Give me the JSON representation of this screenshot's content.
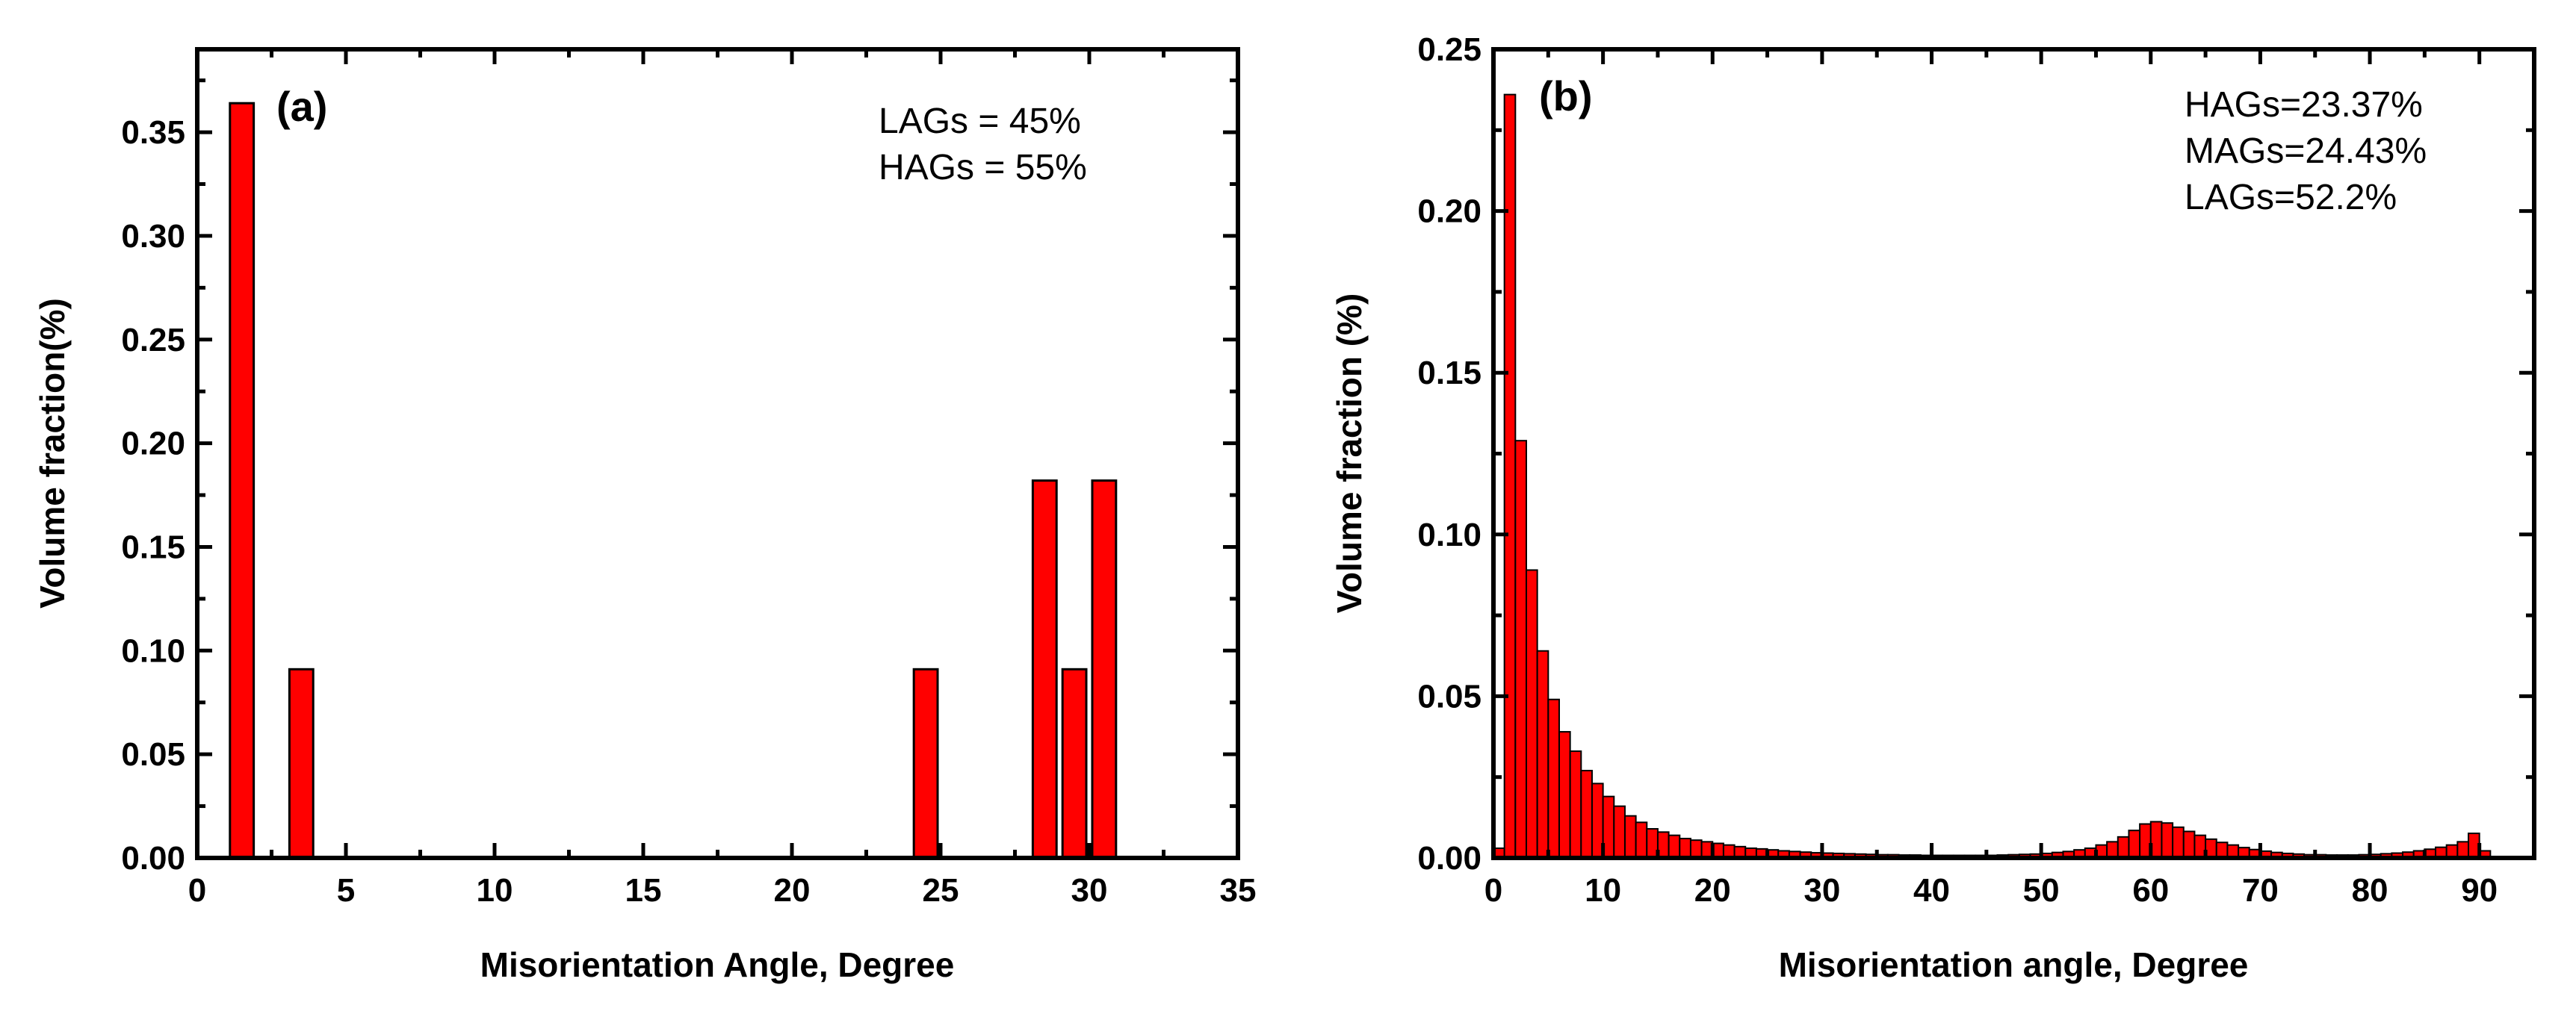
{
  "colors": {
    "bar_fill": "#ff0000",
    "bar_stroke": "#000000",
    "axis": "#000000",
    "background": "#ffffff"
  },
  "chart_data": [
    {
      "type": "bar",
      "panel_label": "(a)",
      "xlabel": "Misorientation Angle, Degree",
      "ylabel": "Volume fraction(%)",
      "xlim": [
        0,
        35
      ],
      "ylim": [
        0,
        0.39
      ],
      "x_ticks": [
        0,
        5,
        10,
        15,
        20,
        25,
        30,
        35
      ],
      "x_tick_labels": [
        "0",
        "5",
        "10",
        "15",
        "20",
        "25",
        "30",
        "35"
      ],
      "y_ticks": [
        0,
        0.05,
        0.1,
        0.15,
        0.2,
        0.25,
        0.3,
        0.35
      ],
      "y_tick_labels": [
        "0.00",
        "0.05",
        "0.10",
        "0.15",
        "0.20",
        "0.25",
        "0.30",
        "0.35"
      ],
      "bar_width": 0.8,
      "x": [
        1.5,
        3.5,
        24.5,
        28.5,
        29.5,
        30.5
      ],
      "values": [
        0.364,
        0.091,
        0.091,
        0.182,
        0.091,
        0.182
      ],
      "annotations": [
        "LAGs = 45%",
        "HAGs = 55%"
      ]
    },
    {
      "type": "bar",
      "panel_label": "(b)",
      "xlabel": "Misorientation angle, Degree",
      "ylabel": "Volume fraction (%)",
      "xlim": [
        0,
        95
      ],
      "ylim": [
        0,
        0.25
      ],
      "x_ticks": [
        0,
        10,
        20,
        30,
        40,
        50,
        60,
        70,
        80,
        90
      ],
      "x_tick_labels": [
        "0",
        "10",
        "20",
        "30",
        "40",
        "50",
        "60",
        "70",
        "80",
        "90"
      ],
      "y_ticks": [
        0,
        0.05,
        0.1,
        0.15,
        0.2,
        0.25
      ],
      "y_tick_labels": [
        "0.00",
        "0.05",
        "0.10",
        "0.15",
        "0.20",
        "0.25"
      ],
      "bar_width": 1,
      "x": [
        0.5,
        1.5,
        2.5,
        3.5,
        4.5,
        5.5,
        6.5,
        7.5,
        8.5,
        9.5,
        10.5,
        11.5,
        12.5,
        13.5,
        14.5,
        15.5,
        16.5,
        17.5,
        18.5,
        19.5,
        20.5,
        21.5,
        22.5,
        23.5,
        24.5,
        25.5,
        26.5,
        27.5,
        28.5,
        29.5,
        30.5,
        31.5,
        32.5,
        33.5,
        34.5,
        35.5,
        36.5,
        37.5,
        38.5,
        39.5,
        40.5,
        41.5,
        42.5,
        43.5,
        44.5,
        45.5,
        46.5,
        47.5,
        48.5,
        49.5,
        50.5,
        51.5,
        52.5,
        53.5,
        54.5,
        55.5,
        56.5,
        57.5,
        58.5,
        59.5,
        60.5,
        61.5,
        62.5,
        63.5,
        64.5,
        65.5,
        66.5,
        67.5,
        68.5,
        69.5,
        70.5,
        71.5,
        72.5,
        73.5,
        74.5,
        75.5,
        76.5,
        77.5,
        78.5,
        79.5,
        80.5,
        81.5,
        82.5,
        83.5,
        84.5,
        85.5,
        86.5,
        87.5,
        88.5,
        89.5,
        90.5
      ],
      "values": [
        0.003,
        0.236,
        0.129,
        0.089,
        0.064,
        0.049,
        0.039,
        0.033,
        0.027,
        0.023,
        0.019,
        0.016,
        0.013,
        0.011,
        0.009,
        0.008,
        0.007,
        0.006,
        0.0055,
        0.005,
        0.0045,
        0.004,
        0.0035,
        0.003,
        0.0028,
        0.0025,
        0.0022,
        0.002,
        0.0018,
        0.0016,
        0.0015,
        0.0014,
        0.0013,
        0.0012,
        0.0011,
        0.001,
        0.001,
        0.0009,
        0.0009,
        0.0008,
        0.0008,
        0.0008,
        0.0008,
        0.0008,
        0.0008,
        0.0008,
        0.0009,
        0.001,
        0.0011,
        0.0012,
        0.0014,
        0.0017,
        0.002,
        0.0025,
        0.003,
        0.004,
        0.005,
        0.0065,
        0.0085,
        0.0105,
        0.0112,
        0.0108,
        0.0095,
        0.0082,
        0.007,
        0.0058,
        0.0048,
        0.004,
        0.0032,
        0.0026,
        0.0021,
        0.0017,
        0.0014,
        0.0012,
        0.001,
        0.001,
        0.0009,
        0.0009,
        0.0009,
        0.001,
        0.0011,
        0.0013,
        0.0015,
        0.0018,
        0.0022,
        0.0027,
        0.0033,
        0.004,
        0.005,
        0.0076,
        0.0022
      ],
      "annotations": [
        "HAGs=23.37%",
        "MAGs=24.43%",
        "LAGs=52.2%"
      ]
    }
  ]
}
